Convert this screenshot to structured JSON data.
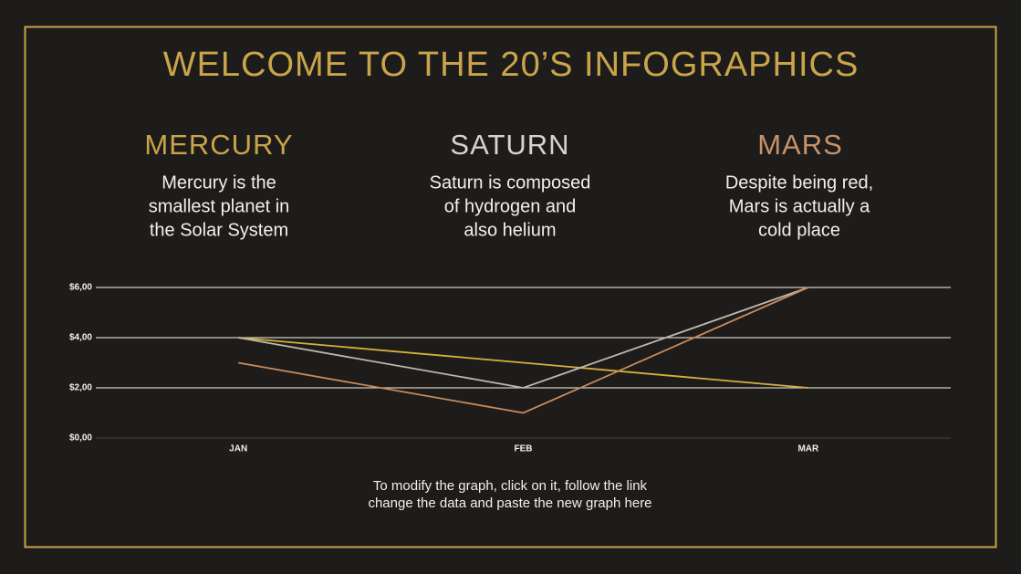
{
  "header": {
    "title": "WELCOME TO THE 20’S INFOGRAPHICS"
  },
  "columns": [
    {
      "heading": "MERCURY",
      "lines": [
        "Mercury is the",
        "smallest planet in",
        "the Solar System"
      ]
    },
    {
      "heading": "SATURN",
      "lines": [
        "Saturn is composed",
        "of hydrogen and",
        "also helium"
      ]
    },
    {
      "heading": "MARS",
      "lines": [
        "Despite being red,",
        "Mars is actually a",
        "cold place"
      ]
    }
  ],
  "footer": {
    "lines": [
      "To modify the graph, click on it, follow the link",
      "change the data and paste the new graph here"
    ]
  },
  "chart_data": {
    "type": "line",
    "categories": [
      "JAN",
      "FEB",
      "MAR"
    ],
    "series": [
      {
        "color": "#d6b03c",
        "values": [
          4,
          3,
          2
        ]
      },
      {
        "color": "#bdb7ae",
        "values": [
          4,
          2,
          6
        ]
      },
      {
        "color": "#c88a5c",
        "values": [
          3,
          1,
          6
        ]
      }
    ],
    "ylim": [
      0,
      6
    ],
    "yticks": [
      {
        "value": 0,
        "label": "$0,00"
      },
      {
        "value": 2,
        "label": "$2,00"
      },
      {
        "value": 4,
        "label": "$4,00"
      },
      {
        "value": 6,
        "label": "$6,00"
      }
    ],
    "grid": true
  }
}
